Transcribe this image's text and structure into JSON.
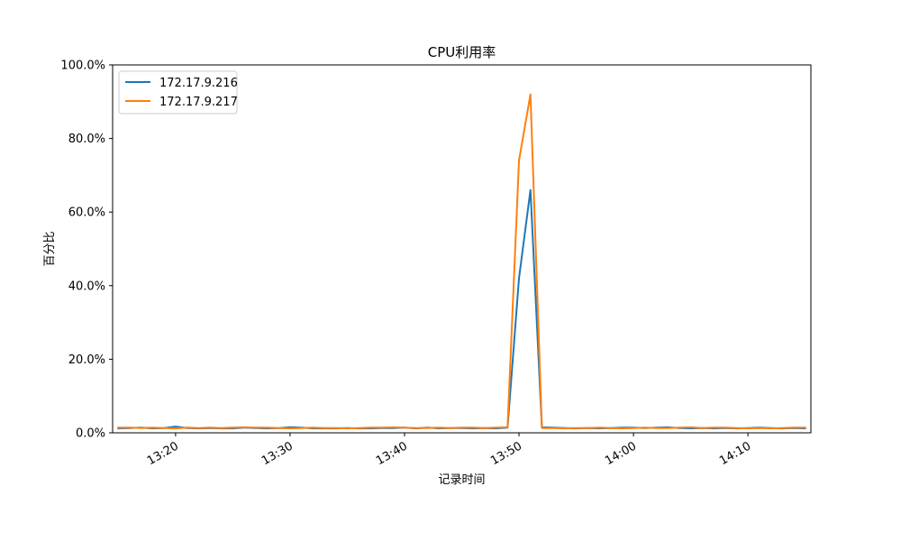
{
  "chart_data": {
    "type": "line",
    "title": "CPU利用率",
    "xlabel": "记录时间",
    "ylabel": "百分比",
    "x_type": "time",
    "x": [
      "13:15",
      "13:16",
      "13:17",
      "13:18",
      "13:19",
      "13:20",
      "13:21",
      "13:22",
      "13:23",
      "13:24",
      "13:25",
      "13:26",
      "13:27",
      "13:28",
      "13:29",
      "13:30",
      "13:31",
      "13:32",
      "13:33",
      "13:34",
      "13:35",
      "13:36",
      "13:37",
      "13:38",
      "13:39",
      "13:40",
      "13:41",
      "13:42",
      "13:43",
      "13:44",
      "13:45",
      "13:46",
      "13:47",
      "13:48",
      "13:49",
      "13:50",
      "13:51",
      "13:52",
      "13:53",
      "13:54",
      "13:55",
      "13:56",
      "13:57",
      "13:58",
      "13:59",
      "14:00",
      "14:01",
      "14:02",
      "14:03",
      "14:04",
      "14:05",
      "14:06",
      "14:07",
      "14:08",
      "14:09",
      "14:10",
      "14:11",
      "14:12",
      "14:13",
      "14:14",
      "14:15"
    ],
    "xlim": [
      "13:14:30",
      "14:15:30"
    ],
    "x_ticks": [
      "13:20",
      "13:30",
      "13:40",
      "13:50",
      "14:00",
      "14:10"
    ],
    "ylim": [
      0,
      100
    ],
    "y_ticks": [
      "0.0%",
      "20.0%",
      "40.0%",
      "60.0%",
      "80.0%",
      "100.0%"
    ],
    "y_tick_values": [
      0,
      20,
      40,
      60,
      80,
      100
    ],
    "legend_position": "upper-left",
    "grid": false,
    "series": [
      {
        "name": "172.17.9.216",
        "color": "#1f77b4",
        "values": [
          1.2,
          1.3,
          1.4,
          1.2,
          1.3,
          1.7,
          1.3,
          1.2,
          1.3,
          1.2,
          1.2,
          1.4,
          1.3,
          1.2,
          1.3,
          1.5,
          1.4,
          1.2,
          1.2,
          1.2,
          1.3,
          1.2,
          1.2,
          1.3,
          1.3,
          1.4,
          1.2,
          1.4,
          1.2,
          1.3,
          1.3,
          1.2,
          1.3,
          1.2,
          1.4,
          42.0,
          66.0,
          1.5,
          1.4,
          1.3,
          1.2,
          1.3,
          1.2,
          1.3,
          1.4,
          1.4,
          1.3,
          1.4,
          1.5,
          1.3,
          1.2,
          1.3,
          1.2,
          1.3,
          1.2,
          1.3,
          1.4,
          1.3,
          1.2,
          1.3,
          1.2
        ]
      },
      {
        "name": "172.17.9.217",
        "color": "#ff7f0e",
        "values": [
          1.4,
          1.4,
          1.3,
          1.4,
          1.3,
          1.2,
          1.4,
          1.3,
          1.4,
          1.3,
          1.4,
          1.5,
          1.4,
          1.4,
          1.3,
          1.2,
          1.3,
          1.4,
          1.3,
          1.3,
          1.2,
          1.3,
          1.4,
          1.4,
          1.5,
          1.4,
          1.3,
          1.3,
          1.4,
          1.3,
          1.4,
          1.4,
          1.3,
          1.4,
          1.5,
          74.0,
          92.0,
          1.3,
          1.3,
          1.2,
          1.3,
          1.3,
          1.4,
          1.3,
          1.2,
          1.3,
          1.4,
          1.3,
          1.3,
          1.4,
          1.5,
          1.3,
          1.4,
          1.4,
          1.3,
          1.2,
          1.3,
          1.2,
          1.3,
          1.4,
          1.4
        ]
      }
    ]
  }
}
